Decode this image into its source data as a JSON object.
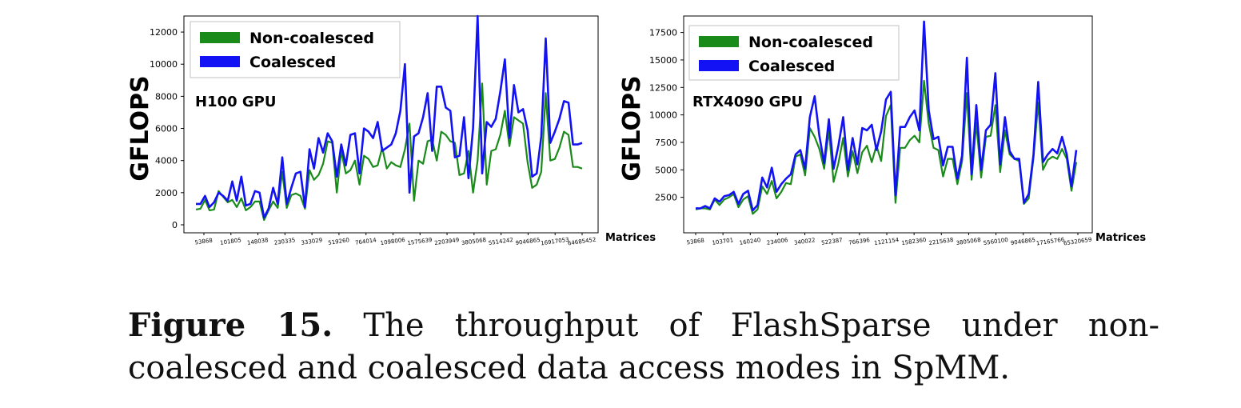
{
  "figure": {
    "label": "Figure 15.",
    "caption": "The throughput of FlashSparse under non-coalesced and coalesced data access modes in SpMM."
  },
  "chart_data": [
    {
      "type": "line",
      "annotation": "H100 GPU",
      "xlabel": "Matrices",
      "ylabel": "GFLOPS",
      "ylim": [
        0,
        13000
      ],
      "yticks": [
        0,
        2000,
        4000,
        6000,
        8000,
        10000,
        12000
      ],
      "legend_position": "top-left",
      "grid": false,
      "x_tick_labels": [
        "53868",
        "101805",
        "148038",
        "230335",
        "333029",
        "519260",
        "764014",
        "1098006",
        "1575639",
        "2203949",
        "3805068",
        "5514242",
        "9046865",
        "16917053",
        "64685452"
      ],
      "series": [
        {
          "name": "Non-coalesced",
          "color": "#1a8a1a",
          "values": [
            950,
            1000,
            1550,
            900,
            950,
            2100,
            1750,
            1400,
            1550,
            1100,
            1650,
            900,
            1100,
            1450,
            1450,
            300,
            900,
            1450,
            1050,
            3300,
            1050,
            1850,
            1950,
            1800,
            1000,
            3400,
            2800,
            3100,
            3800,
            5200,
            5100,
            2000,
            4600,
            3200,
            3400,
            4000,
            2500,
            4300,
            4100,
            3600,
            3700,
            4800,
            3500,
            3900,
            3700,
            3600,
            4700,
            6300,
            1500,
            4000,
            3800,
            5200,
            5300,
            4000,
            5800,
            5600,
            5200,
            5100,
            3100,
            3200,
            4600,
            2000,
            4000,
            8800,
            2500,
            4600,
            4700,
            5600,
            7100,
            4900,
            6700,
            6500,
            6300,
            3900,
            2300,
            2500,
            3300,
            8200,
            4000,
            4100,
            4800,
            5800,
            5600,
            3600,
            3600,
            3500
          ]
        },
        {
          "name": "Coalesced",
          "color": "#1212f5",
          "values": [
            1300,
            1300,
            1800,
            1100,
            1400,
            2000,
            1800,
            1500,
            2700,
            1500,
            3000,
            1200,
            1300,
            2100,
            2000,
            450,
            1000,
            2300,
            1300,
            4200,
            1300,
            2300,
            3200,
            3300,
            1100,
            4700,
            3500,
            5400,
            4500,
            5700,
            5200,
            3000,
            5000,
            3700,
            5600,
            5700,
            3200,
            6000,
            5800,
            5400,
            6400,
            4600,
            4800,
            5000,
            5700,
            7100,
            10000,
            2000,
            5500,
            5700,
            6700,
            8200,
            4600,
            8600,
            8600,
            7300,
            7100,
            4200,
            4300,
            6700,
            2900,
            6000,
            13000,
            3200,
            6400,
            6100,
            6600,
            8300,
            10300,
            5400,
            8700,
            7000,
            7200,
            5900,
            3000,
            3200,
            5500,
            11600,
            5100,
            5800,
            6600,
            7700,
            7600,
            5000,
            5000,
            5100
          ]
        }
      ]
    },
    {
      "type": "line",
      "annotation": "RTX4090 GPU",
      "xlabel": "Matrices",
      "ylabel": "GFLOPS",
      "ylim": [
        0,
        19000
      ],
      "yticks": [
        2500,
        5000,
        7500,
        10000,
        12500,
        15000,
        17500
      ],
      "legend_position": "top-left",
      "grid": false,
      "x_tick_labels": [
        "53868",
        "103701",
        "160240",
        "234006",
        "340022",
        "522387",
        "766396",
        "1121154",
        "1582360",
        "2215638",
        "3805068",
        "5560100",
        "9046865",
        "17165766",
        "65320659"
      ],
      "series": [
        {
          "name": "Non-coalesced",
          "color": "#1a8a1a",
          "values": [
            1400,
            1500,
            1500,
            1400,
            2300,
            1800,
            2300,
            2500,
            2800,
            1600,
            2300,
            2600,
            1000,
            1400,
            3500,
            2800,
            4000,
            2400,
            3000,
            3800,
            3700,
            6200,
            6400,
            4500,
            8800,
            8000,
            6900,
            5100,
            8600,
            3900,
            5600,
            7900,
            4400,
            6700,
            4700,
            6600,
            7200,
            5700,
            7200,
            5800,
            9900,
            10900,
            2000,
            7000,
            7000,
            7700,
            8100,
            7500,
            13100,
            9200,
            7000,
            6800,
            4400,
            6000,
            6000,
            3700,
            5800,
            12000,
            4100,
            9300,
            4300,
            8000,
            8100,
            10900,
            4800,
            8600,
            6400,
            6000,
            5800,
            1900,
            2400,
            6100,
            11100,
            5000,
            5900,
            6200,
            6000,
            6900,
            6000,
            3100,
            5700
          ]
        },
        {
          "name": "Coalesced",
          "color": "#1212f5",
          "values": [
            1500,
            1500,
            1700,
            1500,
            2400,
            2100,
            2600,
            2700,
            3000,
            1900,
            2800,
            3100,
            1300,
            1800,
            4300,
            3400,
            5200,
            3000,
            3700,
            4200,
            4600,
            6400,
            6800,
            5100,
            9800,
            11700,
            8100,
            5600,
            9600,
            5100,
            7200,
            9800,
            5000,
            7900,
            5500,
            8800,
            8600,
            9100,
            6800,
            8500,
            11400,
            12100,
            2700,
            8900,
            8900,
            9800,
            10400,
            8600,
            18500,
            10400,
            7800,
            8000,
            5400,
            7100,
            7100,
            4200,
            6300,
            15200,
            4600,
            10900,
            5000,
            8600,
            9100,
            13800,
            5500,
            9800,
            6700,
            6000,
            6000,
            2000,
            2800,
            6400,
            13000,
            5700,
            6400,
            6900,
            6500,
            8000,
            6400,
            3500,
            6800
          ]
        }
      ]
    }
  ]
}
